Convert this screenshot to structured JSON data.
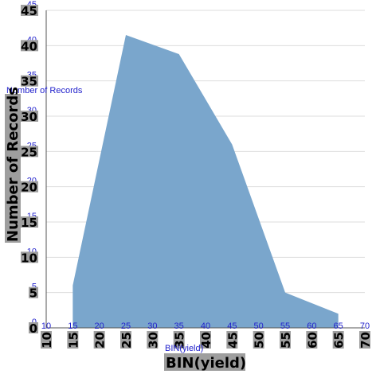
{
  "chart_data": {
    "type": "area",
    "x": [
      15,
      25,
      35,
      45,
      55,
      65
    ],
    "values": [
      6,
      41.5,
      38.8,
      26,
      5,
      2
    ],
    "xlabel": "BIN(yield)",
    "ylabel": "Number of Records",
    "xlim": [
      10,
      70
    ],
    "ylim": [
      0,
      45
    ],
    "x_ticks": [
      "10",
      "15",
      "20",
      "25",
      "30",
      "35",
      "40",
      "45",
      "50",
      "55",
      "60",
      "65",
      "70"
    ],
    "y_ticks": [
      "0",
      "5",
      "10",
      "15",
      "20",
      "25",
      "30",
      "35",
      "40",
      "45"
    ],
    "grid": "horizontal",
    "colors": {
      "area": "#7aa6cc",
      "gridline": "#dddddd",
      "label_blue": "#2222cc",
      "tick_bg": "#9e9e9e"
    }
  }
}
